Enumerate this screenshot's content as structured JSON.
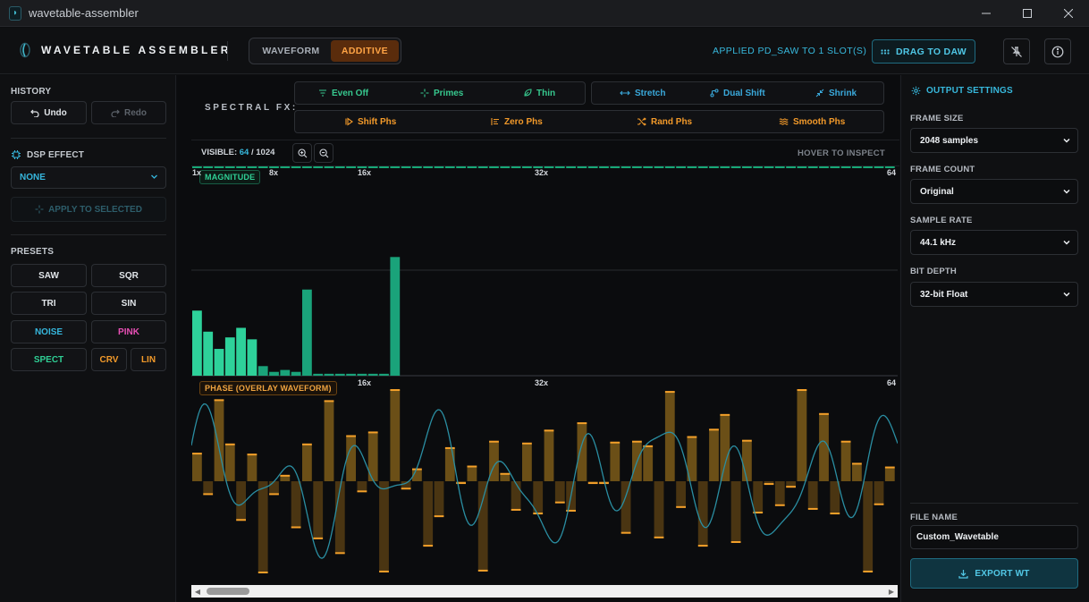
{
  "window": {
    "title": "wavetable-assembler",
    "controls": [
      "minimize",
      "maximize",
      "close"
    ]
  },
  "header": {
    "brand": "WAVETABLE ASSEMBLER",
    "modes": [
      {
        "label": "WAVEFORM",
        "active": false
      },
      {
        "label": "ADDITIVE",
        "active": true
      }
    ],
    "status": "APPLIED PD_SAW TO 1 SLOT(S)",
    "drag_label": "DRAG TO DAW",
    "icons": [
      "pin-off-icon",
      "info-icon"
    ]
  },
  "sidebar": {
    "history_label": "HISTORY",
    "undo_label": "Undo",
    "redo_label": "Redo",
    "dsp_label": "DSP EFFECT",
    "dsp_value": "NONE",
    "apply_label": "APPLY TO SELECTED",
    "presets_label": "PRESETS",
    "presets": [
      {
        "label": "SAW",
        "color": "#e2e6ea"
      },
      {
        "label": "SQR",
        "color": "#e2e6ea"
      },
      {
        "label": "TRI",
        "color": "#e2e6ea"
      },
      {
        "label": "SIN",
        "color": "#e2e6ea"
      },
      {
        "label": "NOISE",
        "color": "#36b6dc"
      },
      {
        "label": "PINK",
        "color": "#e84fb5"
      },
      {
        "label": "SPECT",
        "color": "#2fcf95"
      },
      {
        "label": "CRV",
        "color": "#f39a2a"
      },
      {
        "label": "LIN",
        "color": "#f39a2a"
      }
    ]
  },
  "spectral_fx": {
    "label": "SPECTRAL FX:",
    "group1": [
      "Even Off",
      "Primes",
      "Thin"
    ],
    "group2": [
      "Stretch",
      "Dual Shift",
      "Shrink"
    ],
    "group3": [
      "Shift Phs",
      "Zero Phs",
      "Rand Phs",
      "Smooth Phs"
    ]
  },
  "view": {
    "visible_label": "VISIBLE:",
    "visible_count": "64",
    "visible_sep": "/",
    "visible_total": "1024",
    "hover_hint": "HOVER TO INSPECT"
  },
  "magnitude": {
    "badge": "MAGNITUDE",
    "ticks": [
      "1x",
      "8x",
      "16x",
      "32x",
      "64"
    ]
  },
  "phase": {
    "badge": "PHASE (OVERLAY WAVEFORM)",
    "ticks": [
      "16x",
      "32x",
      "64"
    ]
  },
  "output": {
    "title": "OUTPUT SETTINGS",
    "frame_size_label": "FRAME SIZE",
    "frame_size": "2048 samples",
    "frame_count_label": "FRAME COUNT",
    "frame_count": "Original",
    "sample_rate_label": "SAMPLE RATE",
    "sample_rate": "44.1 kHz",
    "bit_depth_label": "BIT DEPTH",
    "bit_depth": "32-bit Float",
    "file_name_label": "FILE NAME",
    "file_name": "Custom_Wavetable",
    "export_label": "EXPORT WT"
  },
  "chart_data": [
    {
      "type": "bar",
      "title": "MAGNITUDE",
      "x": [
        1,
        2,
        3,
        4,
        5,
        6,
        7,
        8,
        9,
        10,
        11,
        12,
        13,
        14,
        15,
        16,
        17,
        18,
        19,
        20,
        21,
        22,
        23,
        24,
        25,
        26,
        27,
        28,
        29,
        30,
        31,
        32,
        33,
        34,
        35,
        36,
        37,
        38,
        39,
        40,
        41,
        42,
        43,
        44,
        45,
        46,
        47,
        48,
        49,
        50,
        51,
        52,
        53,
        54,
        55,
        56,
        57,
        58,
        59,
        60,
        61,
        62,
        63,
        64
      ],
      "values": [
        0.34,
        0.23,
        0.14,
        0.2,
        0.25,
        0.19,
        0.05,
        0.02,
        0.03,
        0.02,
        0.45,
        0.01,
        0.01,
        0.01,
        0.01,
        0.01,
        0.01,
        0.01,
        0.62,
        0,
        0,
        0,
        0,
        0,
        0,
        0,
        0,
        0,
        0,
        0,
        0,
        0,
        0,
        0,
        0,
        0,
        0,
        0,
        0,
        0,
        0,
        0,
        0,
        0,
        0,
        0,
        0,
        0,
        0,
        0,
        0,
        0,
        0,
        0,
        0,
        0,
        0,
        0,
        0,
        0,
        0,
        0,
        0,
        0
      ],
      "ylim": [
        0,
        1
      ]
    },
    {
      "type": "bar",
      "title": "PHASE (OVERLAY WAVEFORM)",
      "x": [
        1,
        2,
        3,
        4,
        5,
        6,
        7,
        8,
        9,
        10,
        11,
        12,
        13,
        14,
        15,
        16,
        17,
        18,
        19,
        20,
        21,
        22,
        23,
        24,
        25,
        26,
        27,
        28,
        29,
        30,
        31,
        32,
        33,
        34,
        35,
        36,
        37,
        38,
        39,
        40,
        41,
        42,
        43,
        44,
        45,
        46,
        47,
        48,
        49,
        50,
        51,
        52,
        53,
        54,
        55,
        56,
        57,
        58,
        59,
        60,
        61,
        62,
        63,
        64
      ],
      "values": [
        0.3,
        -0.14,
        0.88,
        0.4,
        -0.42,
        0.29,
        -0.99,
        -0.14,
        0.06,
        -0.5,
        0.4,
        -0.62,
        0.87,
        -0.78,
        0.49,
        -0.11,
        0.53,
        -0.98,
        0.99,
        -0.08,
        0.13,
        -0.7,
        -0.38,
        0.36,
        -0.02,
        0.16,
        -0.97,
        0.43,
        0.08,
        -0.31,
        0.41,
        -0.35,
        0.55,
        -0.23,
        -0.32,
        0.63,
        -0.02,
        -0.02,
        0.42,
        -0.56,
        0.43,
        0.38,
        -0.61,
        0.97,
        -0.28,
        0.48,
        -0.7,
        0.56,
        0.72,
        -0.66,
        0.44,
        -0.34,
        -0.03,
        -0.26,
        -0.06,
        0.99,
        -0.3,
        0.73,
        -0.35,
        0.43,
        0.19,
        -0.98,
        -0.25,
        0.15
      ],
      "ylim": [
        -1,
        1
      ]
    }
  ]
}
